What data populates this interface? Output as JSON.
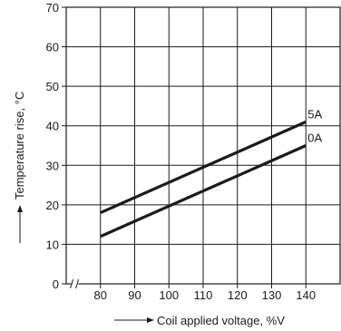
{
  "chart_data": {
    "type": "line",
    "xlabel": "Coil applied voltage, %V",
    "ylabel": "Temperature rise, °C",
    "xlim": [
      70,
      150
    ],
    "ylim": [
      0,
      70
    ],
    "x_ticks": [
      80,
      90,
      100,
      110,
      120,
      130,
      140
    ],
    "y_ticks": [
      0,
      10,
      20,
      30,
      40,
      50,
      60,
      70
    ],
    "x_axis_break": true,
    "grid": true,
    "series": [
      {
        "name": "5A",
        "x": [
          80,
          140
        ],
        "y": [
          18,
          41
        ]
      },
      {
        "name": "0A",
        "x": [
          80,
          140
        ],
        "y": [
          12,
          35
        ]
      }
    ]
  }
}
